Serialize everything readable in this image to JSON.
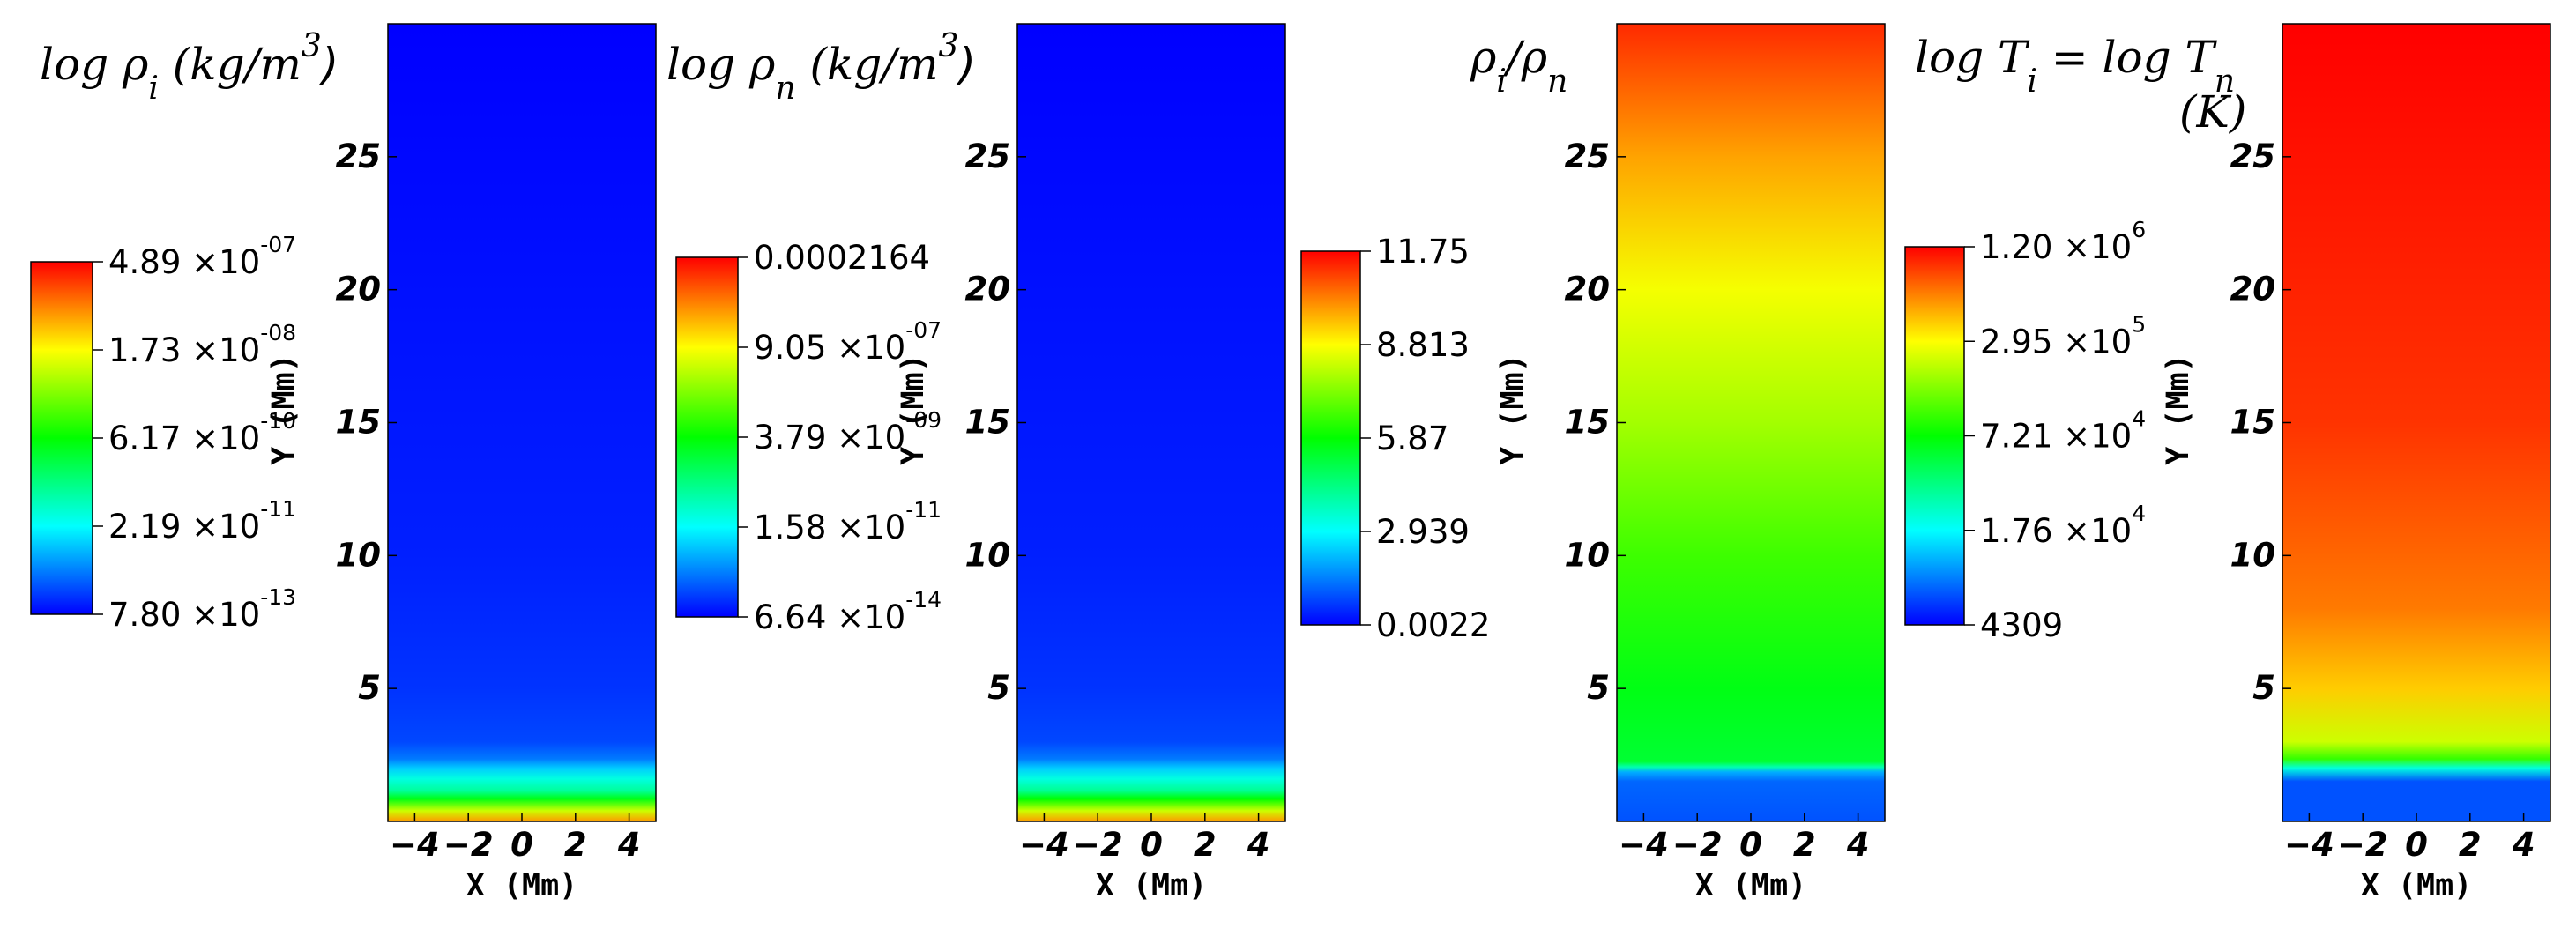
{
  "chart_data": [
    {
      "type": "heatmap",
      "title": {
        "main": "log ρ",
        "sub": "i",
        "unit": " (kg/m",
        "sup": "3",
        "close": ")"
      },
      "xlabel": "X (Mm)",
      "ylabel": "Y (Mm)",
      "xlim": [
        -5,
        5
      ],
      "ylim": [
        0,
        30
      ],
      "xticks": [
        -4,
        -2,
        0,
        2,
        4
      ],
      "yticks": [
        5,
        10,
        15,
        20,
        25
      ],
      "colorbar": [
        {
          "mant": "4.89 ×10",
          "exp": "-07"
        },
        {
          "mant": "1.73 ×10",
          "exp": "-08"
        },
        {
          "mant": "6.17 ×10",
          "exp": "-10"
        },
        {
          "mant": "2.19 ×10",
          "exp": "-11"
        },
        {
          "mant": "7.80 ×10",
          "exp": "-13"
        }
      ],
      "profile": [
        [
          0,
          0.85
        ],
        [
          0.4,
          0.7
        ],
        [
          0.85,
          0.48
        ],
        [
          1.15,
          0.35
        ],
        [
          1.6,
          0.28
        ],
        [
          2.0,
          0.2
        ],
        [
          2.35,
          0.12
        ],
        [
          3.0,
          0.07
        ],
        [
          5,
          0.05
        ],
        [
          10,
          0.03
        ],
        [
          30,
          0.0
        ]
      ]
    },
    {
      "type": "heatmap",
      "title": {
        "main": "log ρ",
        "sub": "n",
        "unit": " (kg/m",
        "sup": "3",
        "close": ")"
      },
      "xlabel": "X (Mm)",
      "ylabel": "Y (Mm)",
      "xlim": [
        -5,
        5
      ],
      "ylim": [
        0,
        30
      ],
      "xticks": [
        -4,
        -2,
        0,
        2,
        4
      ],
      "yticks": [
        5,
        10,
        15,
        20,
        25
      ],
      "colorbar": [
        {
          "mant": "0.0002164",
          "exp": ""
        },
        {
          "mant": "9.05 ×10",
          "exp": "-07"
        },
        {
          "mant": "3.79 ×10",
          "exp": "-09"
        },
        {
          "mant": "1.58 ×10",
          "exp": "-11"
        },
        {
          "mant": "6.64 ×10",
          "exp": "-14"
        }
      ],
      "profile": [
        [
          0,
          0.85
        ],
        [
          0.4,
          0.7
        ],
        [
          0.85,
          0.5
        ],
        [
          1.15,
          0.36
        ],
        [
          1.6,
          0.28
        ],
        [
          2.0,
          0.2
        ],
        [
          2.35,
          0.12
        ],
        [
          3.0,
          0.07
        ],
        [
          5,
          0.05
        ],
        [
          10,
          0.03
        ],
        [
          30,
          0.0
        ]
      ]
    },
    {
      "type": "heatmap",
      "title": {
        "main": "ρ",
        "sub": "i",
        "mid": "/ρ",
        "sub2": "n"
      },
      "xlabel": "X (Mm)",
      "ylabel": "Y (Mm)",
      "xlim": [
        -5,
        5
      ],
      "ylim": [
        0,
        30
      ],
      "xticks": [
        -4,
        -2,
        0,
        2,
        4
      ],
      "yticks": [
        5,
        10,
        15,
        20,
        25
      ],
      "colorbar": [
        {
          "mant": "11.75",
          "exp": ""
        },
        {
          "mant": "8.813",
          "exp": ""
        },
        {
          "mant": "5.87",
          "exp": ""
        },
        {
          "mant": "2.939",
          "exp": ""
        },
        {
          "mant": "0.0022",
          "exp": ""
        }
      ],
      "profile": [
        [
          0,
          0.08
        ],
        [
          1.5,
          0.1
        ],
        [
          1.85,
          0.17
        ],
        [
          2.05,
          0.33
        ],
        [
          2.25,
          0.45
        ],
        [
          5,
          0.48
        ],
        [
          10,
          0.56
        ],
        [
          15,
          0.66
        ],
        [
          20,
          0.74
        ],
        [
          25,
          0.84
        ],
        [
          30,
          0.96
        ]
      ]
    },
    {
      "type": "heatmap",
      "title": {
        "main": "log T",
        "sub": "i",
        "mid": " = log T",
        "sub2": "n",
        "line2": "(K)"
      },
      "xlabel": "X (Mm)",
      "ylabel": "Y (Mm)",
      "xlim": [
        -5,
        5
      ],
      "ylim": [
        0,
        30
      ],
      "xticks": [
        -4,
        -2,
        0,
        2,
        4
      ],
      "yticks": [
        5,
        10,
        15,
        20,
        25
      ],
      "colorbar": [
        {
          "mant": "1.20 ×10",
          "exp": "6"
        },
        {
          "mant": "2.95 ×10",
          "exp": "5"
        },
        {
          "mant": "7.21 ×10",
          "exp": "4"
        },
        {
          "mant": "1.76 ×10",
          "exp": "4"
        },
        {
          "mant": "4309",
          "exp": ""
        }
      ],
      "profile": [
        [
          0,
          0.08
        ],
        [
          1.5,
          0.08
        ],
        [
          2.0,
          0.28
        ],
        [
          2.35,
          0.55
        ],
        [
          3.0,
          0.7
        ],
        [
          5,
          0.8
        ],
        [
          8,
          0.88
        ],
        [
          15,
          0.95
        ],
        [
          30,
          1.0
        ]
      ]
    }
  ]
}
